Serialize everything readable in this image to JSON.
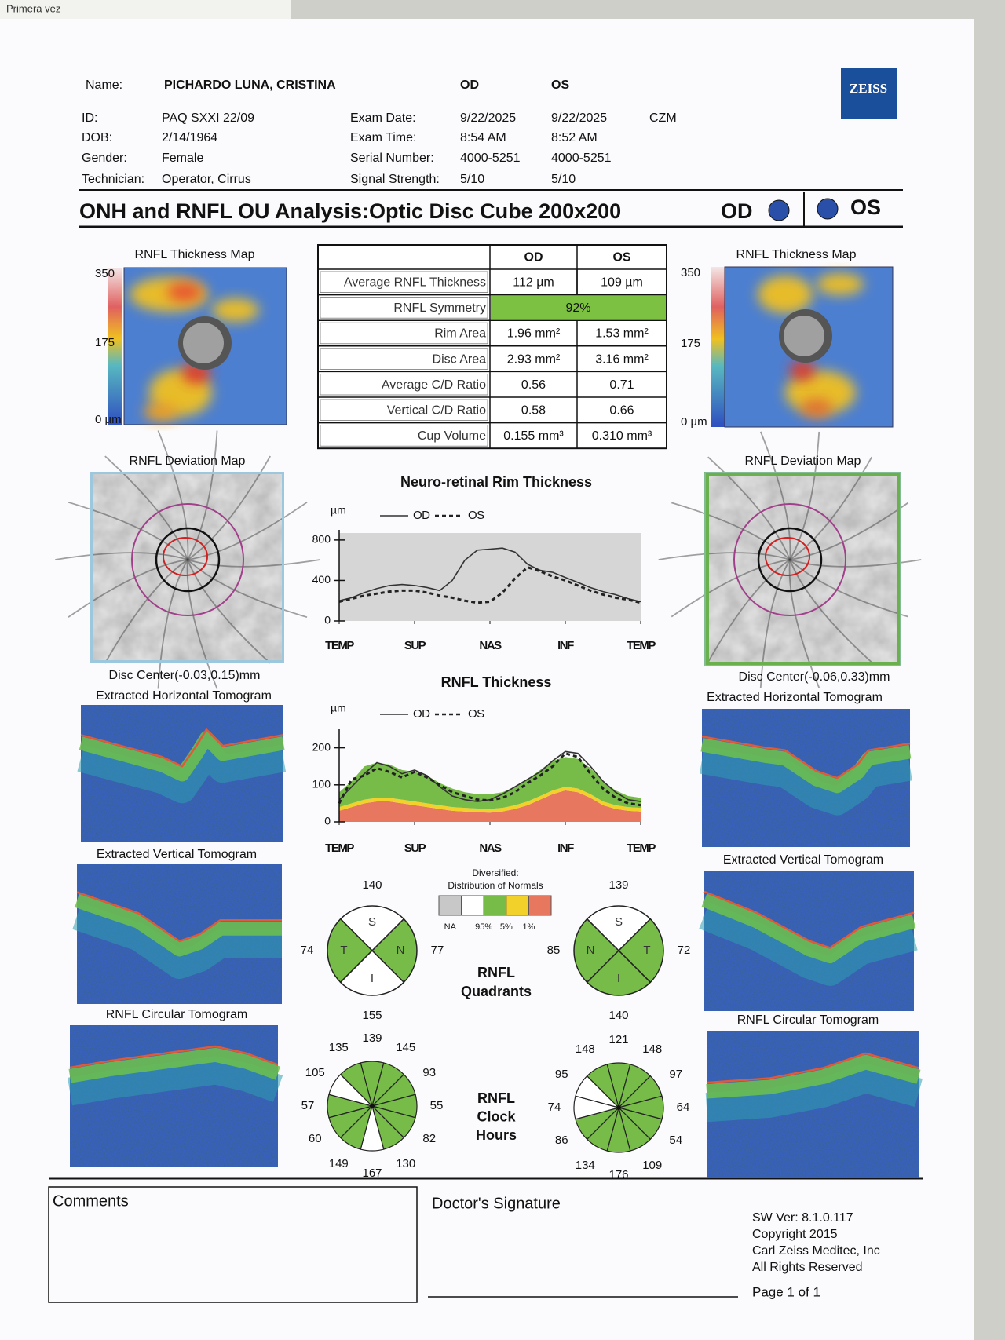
{
  "header": {
    "corner_note": "Primera vez",
    "logo": "ZEISS",
    "name_label": "Name:",
    "name": "PICHARDO LUNA, CRISTINA",
    "od": "OD",
    "os": "OS",
    "czm": "CZM",
    "left_fields": [
      [
        "ID:",
        "PAQ SXXI 22/09"
      ],
      [
        "DOB:",
        "2/14/1964"
      ],
      [
        "Gender:",
        "Female"
      ],
      [
        "Technician:",
        "Operator, Cirrus"
      ]
    ],
    "exam_fields": [
      [
        "Exam Date:",
        "9/22/2025",
        "9/22/2025"
      ],
      [
        "Exam Time:",
        "8:54 AM",
        "8:52 AM"
      ],
      [
        "Serial Number:",
        "4000-5251",
        "4000-5251"
      ],
      [
        "Signal Strength:",
        "5/10",
        "5/10"
      ]
    ]
  },
  "title": {
    "text": "ONH and RNFL OU Analysis:Optic Disc Cube 200x200",
    "od": "OD",
    "os": "OS",
    "eye_color": "#2a4fa8"
  },
  "table": {
    "columns": [
      "OD",
      "OS"
    ],
    "symmetry_color": "#7cc142",
    "rows": [
      [
        "Average RNFL Thickness",
        "112 µm",
        "109 µm"
      ],
      [
        "RNFL Symmetry",
        "92%"
      ],
      [
        "Rim Area",
        "1.96 mm²",
        "1.53 mm²"
      ],
      [
        "Disc Area",
        "2.93 mm²",
        "3.16 mm²"
      ],
      [
        "Average C/D Ratio",
        "0.56",
        "0.71"
      ],
      [
        "Vertical C/D Ratio",
        "0.58",
        "0.66"
      ],
      [
        "Cup Volume",
        "0.155 mm³",
        "0.310 mm³"
      ]
    ]
  },
  "thickness_map": {
    "title": "RNFL Thickness Map",
    "scale": [
      "350",
      "175",
      "0 µm"
    ]
  },
  "deviation_map": {
    "title": "RNFL Deviation Map",
    "od_center": "Disc Center(-0.03,0.15)mm",
    "os_center": "Disc Center(-0.06,0.33)mm"
  },
  "tomograms": [
    "Extracted Horizontal Tomogram",
    "Extracted Vertical Tomogram",
    "RNFL Circular Tomogram"
  ],
  "chart_data": [
    {
      "type": "line",
      "title": "Neuro-retinal Rim Thickness",
      "y_unit": "µm",
      "background": "#d6d6d6",
      "x": [
        0,
        1,
        2,
        3,
        4,
        5,
        6,
        7,
        8,
        9,
        10,
        11,
        12,
        13,
        14,
        15,
        16,
        17,
        18,
        19,
        20,
        21,
        22,
        23,
        24
      ],
      "xlim": [
        0,
        24
      ],
      "xticks": [
        {
          "value": 0,
          "label": "TEMP"
        },
        {
          "value": 6,
          "label": "SUP"
        },
        {
          "value": 12,
          "label": "NAS"
        },
        {
          "value": 18,
          "label": "INF"
        },
        {
          "value": 24,
          "label": "TEMP"
        }
      ],
      "ylim": [
        0,
        900
      ],
      "yticks": [
        0,
        400,
        800
      ],
      "series": [
        {
          "name": "OD",
          "color": "#333333",
          "dashed": false,
          "values": [
            200,
            230,
            280,
            320,
            350,
            360,
            350,
            330,
            300,
            400,
            600,
            700,
            710,
            720,
            680,
            560,
            500,
            480,
            430,
            380,
            330,
            290,
            260,
            220,
            190
          ]
        },
        {
          "name": "OS",
          "color": "#222222",
          "dashed": true,
          "values": [
            190,
            220,
            250,
            270,
            290,
            300,
            300,
            280,
            250,
            230,
            200,
            180,
            190,
            280,
            420,
            530,
            490,
            440,
            400,
            350,
            300,
            260,
            230,
            210,
            180
          ]
        }
      ]
    },
    {
      "type": "line",
      "title": "RNFL Thickness",
      "y_unit": "µm",
      "x": [
        0,
        1,
        2,
        3,
        4,
        5,
        6,
        7,
        8,
        9,
        10,
        11,
        12,
        13,
        14,
        15,
        16,
        17,
        18,
        19,
        20,
        21,
        22,
        23,
        24
      ],
      "xlim": [
        0,
        24
      ],
      "xticks": [
        {
          "value": 0,
          "label": "TEMP"
        },
        {
          "value": 6,
          "label": "SUP"
        },
        {
          "value": 12,
          "label": "NAS"
        },
        {
          "value": 18,
          "label": "INF"
        },
        {
          "value": 24,
          "label": "TEMP"
        }
      ],
      "ylim": [
        0,
        250
      ],
      "yticks": [
        0,
        100,
        200
      ],
      "bands": [
        {
          "color": "#e8775f",
          "values": [
            30,
            40,
            50,
            55,
            55,
            50,
            45,
            40,
            35,
            30,
            28,
            26,
            25,
            28,
            35,
            45,
            60,
            75,
            85,
            80,
            65,
            45,
            35,
            30,
            28
          ]
        },
        {
          "color": "#f2d12a",
          "values": [
            10,
            10,
            10,
            10,
            10,
            10,
            10,
            10,
            10,
            10,
            10,
            10,
            10,
            10,
            10,
            10,
            10,
            10,
            10,
            10,
            10,
            10,
            10,
            10,
            10
          ]
        },
        {
          "color": "#77bb48",
          "values": [
            40,
            60,
            90,
            95,
            90,
            80,
            80,
            75,
            60,
            50,
            42,
            39,
            40,
            42,
            50,
            60,
            70,
            80,
            80,
            80,
            70,
            55,
            40,
            30,
            27
          ]
        }
      ],
      "series": [
        {
          "name": "OD",
          "color": "#333333",
          "dashed": false,
          "values": [
            60,
            95,
            130,
            160,
            150,
            130,
            140,
            125,
            95,
            70,
            60,
            55,
            60,
            75,
            95,
            115,
            135,
            165,
            190,
            185,
            150,
            110,
            80,
            60,
            55
          ]
        },
        {
          "name": "OS",
          "color": "#222222",
          "dashed": true,
          "values": [
            50,
            115,
            125,
            145,
            135,
            120,
            135,
            120,
            100,
            80,
            70,
            60,
            58,
            65,
            80,
            105,
            125,
            150,
            185,
            175,
            130,
            90,
            65,
            50,
            45
          ]
        }
      ]
    }
  ],
  "normals_legend": {
    "title": [
      "Diversified:",
      "Distribution of Normals"
    ],
    "colors": [
      "#c8c8c8",
      "#ffffff",
      "#77bb48",
      "#f2d12a",
      "#e8775f"
    ],
    "labels": [
      "NA",
      "95%",
      "5%",
      "1%"
    ]
  },
  "quadrants": {
    "title": [
      "RNFL",
      "Quadrants"
    ],
    "od": [
      {
        "label": "S",
        "value": 140,
        "color": "#ffffff"
      },
      {
        "label": "T",
        "value": 74,
        "color": "#77bb48"
      },
      {
        "label": "N",
        "value": 77,
        "color": "#77bb48"
      },
      {
        "label": "I",
        "value": 155,
        "color": "#ffffff"
      }
    ],
    "os": [
      {
        "label": "S",
        "value": 139,
        "color": "#ffffff"
      },
      {
        "label": "N",
        "value": 85,
        "color": "#77bb48"
      },
      {
        "label": "T",
        "value": 72,
        "color": "#77bb48"
      },
      {
        "label": "I",
        "value": 140,
        "color": "#77bb48"
      }
    ]
  },
  "clock_hours": {
    "title": [
      "RNFL",
      "Clock",
      "Hours"
    ],
    "od": {
      "values": [
        139,
        145,
        93,
        55,
        82,
        130,
        167,
        149,
        60,
        57,
        105,
        135
      ],
      "colors": [
        "#77bb48",
        "#77bb48",
        "#77bb48",
        "#77bb48",
        "#77bb48",
        "#77bb48",
        "#ffffff",
        "#77bb48",
        "#77bb48",
        "#77bb48",
        "#ffffff",
        "#77bb48"
      ]
    },
    "os": {
      "values": [
        121,
        148,
        97,
        64,
        54,
        109,
        176,
        134,
        86,
        74,
        95,
        148
      ],
      "colors": [
        "#77bb48",
        "#77bb48",
        "#77bb48",
        "#77bb48",
        "#77bb48",
        "#77bb48",
        "#77bb48",
        "#77bb48",
        "#77bb48",
        "#ffffff",
        "#ffffff",
        "#77bb48"
      ]
    }
  },
  "footer": {
    "comments": "Comments",
    "signature": "Doctor's Signature",
    "info": [
      "SW Ver: 8.1.0.117",
      "Copyright 2015",
      "Carl Zeiss Meditec, Inc",
      "All Rights Reserved"
    ],
    "page": "Page 1 of 1"
  }
}
